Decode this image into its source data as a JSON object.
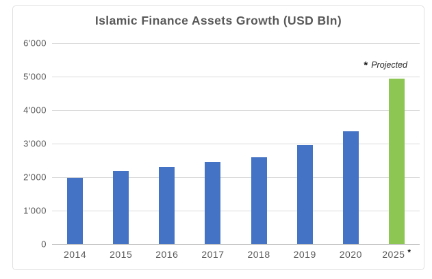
{
  "chart_data": {
    "type": "bar",
    "title": "Islamic Finance Assets Growth (USD Bln)",
    "categories": [
      "2014",
      "2015",
      "2016",
      "2017",
      "2018",
      "2019",
      "2020",
      "2025"
    ],
    "values": [
      1974,
      2190,
      2306,
      2458,
      2591,
      2964,
      3374,
      4940
    ],
    "ylim": [
      0,
      6000
    ],
    "ytick_interval": 1000,
    "ytick_labels": [
      "0",
      "1'000",
      "2'000",
      "3'000",
      "4'000",
      "5'000",
      "6'000"
    ],
    "xlabel": "",
    "ylabel": "",
    "grid": true,
    "legend_position": "none",
    "bar_color": "#4472C4",
    "projected_bar_color": "#8DC653",
    "projected_index": 7,
    "projected_marker": "*",
    "annotation": {
      "marker": "*",
      "text": "Projected"
    }
  }
}
